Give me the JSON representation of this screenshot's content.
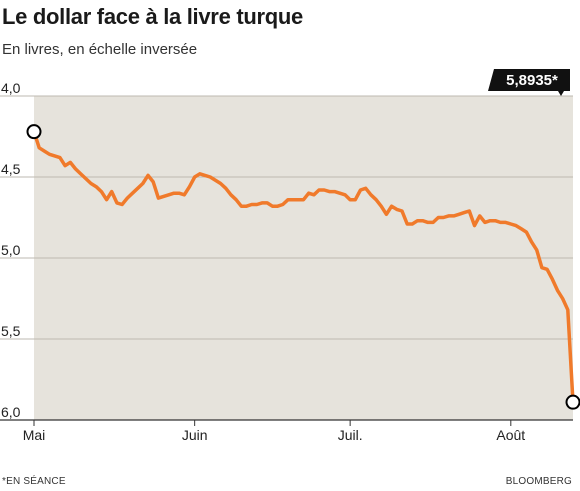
{
  "chart_data": {
    "type": "line",
    "title": "Le dollar face à la livre turque",
    "subtitle": "En livres, en échelle inversée",
    "y_axis": {
      "inverted": true,
      "ylim": [
        4.0,
        6.0
      ],
      "ticks": [
        "4,0",
        "4,5",
        "5,0",
        "5,5",
        "6,0"
      ],
      "tick_values": [
        4.0,
        4.5,
        5.0,
        5.5,
        6.0
      ]
    },
    "x_axis": {
      "range": [
        "2018-05-01",
        "2018-08-13"
      ],
      "ticks": [
        {
          "label": "Mai",
          "date": "2018-05-01"
        },
        {
          "label": "Juin",
          "date": "2018-06-01"
        },
        {
          "label": "Juil.",
          "date": "2018-07-01"
        },
        {
          "label": "Août",
          "date": "2018-08-01"
        }
      ]
    },
    "grid": "horizontal",
    "line_color": "#f07a2b",
    "background_color": "#e6e3dc",
    "last_value_label": "5,8935*",
    "series": [
      {
        "dates": [
          "2018-05-01",
          "2018-05-02",
          "2018-05-03",
          "2018-05-04",
          "2018-05-05",
          "2018-05-06",
          "2018-05-07",
          "2018-05-08",
          "2018-05-09",
          "2018-05-10",
          "2018-05-11",
          "2018-05-12",
          "2018-05-13",
          "2018-05-14",
          "2018-05-15",
          "2018-05-16",
          "2018-05-17",
          "2018-05-18",
          "2018-05-19",
          "2018-05-20",
          "2018-05-21",
          "2018-05-22",
          "2018-05-23",
          "2018-05-24",
          "2018-05-25",
          "2018-05-26",
          "2018-05-27",
          "2018-05-28",
          "2018-05-29",
          "2018-05-30",
          "2018-05-31",
          "2018-06-01",
          "2018-06-02",
          "2018-06-03",
          "2018-06-04",
          "2018-06-05",
          "2018-06-06",
          "2018-06-07",
          "2018-06-08",
          "2018-06-09",
          "2018-06-10",
          "2018-06-11",
          "2018-06-12",
          "2018-06-13",
          "2018-06-14",
          "2018-06-15",
          "2018-06-16",
          "2018-06-17",
          "2018-06-18",
          "2018-06-19",
          "2018-06-20",
          "2018-06-21",
          "2018-06-22",
          "2018-06-23",
          "2018-06-24",
          "2018-06-25",
          "2018-06-26",
          "2018-06-27",
          "2018-06-28",
          "2018-06-29",
          "2018-06-30",
          "2018-07-01",
          "2018-07-02",
          "2018-07-03",
          "2018-07-04",
          "2018-07-05",
          "2018-07-06",
          "2018-07-07",
          "2018-07-08",
          "2018-07-09",
          "2018-07-10",
          "2018-07-11",
          "2018-07-12",
          "2018-07-13",
          "2018-07-14",
          "2018-07-15",
          "2018-07-16",
          "2018-07-17",
          "2018-07-18",
          "2018-07-19",
          "2018-07-20",
          "2018-07-21",
          "2018-07-22",
          "2018-07-23",
          "2018-07-24",
          "2018-07-25",
          "2018-07-26",
          "2018-07-27",
          "2018-07-28",
          "2018-07-29",
          "2018-07-30",
          "2018-07-31",
          "2018-08-01",
          "2018-08-02",
          "2018-08-03",
          "2018-08-04",
          "2018-08-05",
          "2018-08-06",
          "2018-08-07",
          "2018-08-08",
          "2018-08-09",
          "2018-08-10",
          "2018-08-11",
          "2018-08-12",
          "2018-08-13"
        ],
        "values": [
          4.22,
          4.32,
          4.34,
          4.36,
          4.37,
          4.38,
          4.43,
          4.41,
          4.45,
          4.48,
          4.51,
          4.54,
          4.56,
          4.59,
          4.64,
          4.59,
          4.66,
          4.67,
          4.63,
          4.6,
          4.57,
          4.54,
          4.49,
          4.53,
          4.63,
          4.62,
          4.61,
          4.6,
          4.6,
          4.61,
          4.56,
          4.5,
          4.48,
          4.49,
          4.5,
          4.52,
          4.54,
          4.57,
          4.61,
          4.64,
          4.68,
          4.68,
          4.67,
          4.67,
          4.66,
          4.66,
          4.68,
          4.68,
          4.67,
          4.64,
          4.64,
          4.64,
          4.64,
          4.6,
          4.61,
          4.58,
          4.58,
          4.59,
          4.59,
          4.6,
          4.61,
          4.64,
          4.64,
          4.58,
          4.57,
          4.61,
          4.64,
          4.68,
          4.73,
          4.68,
          4.7,
          4.71,
          4.79,
          4.79,
          4.77,
          4.77,
          4.78,
          4.78,
          4.75,
          4.75,
          4.74,
          4.74,
          4.73,
          4.72,
          4.71,
          4.8,
          4.74,
          4.78,
          4.77,
          4.77,
          4.78,
          4.78,
          4.79,
          4.8,
          4.82,
          4.84,
          4.9,
          4.95,
          5.06,
          5.07,
          5.13,
          5.2,
          5.25,
          5.32,
          5.89
        ]
      }
    ],
    "footer_left": "*EN SÉANCE",
    "footer_right": "BLOOMBERG"
  }
}
